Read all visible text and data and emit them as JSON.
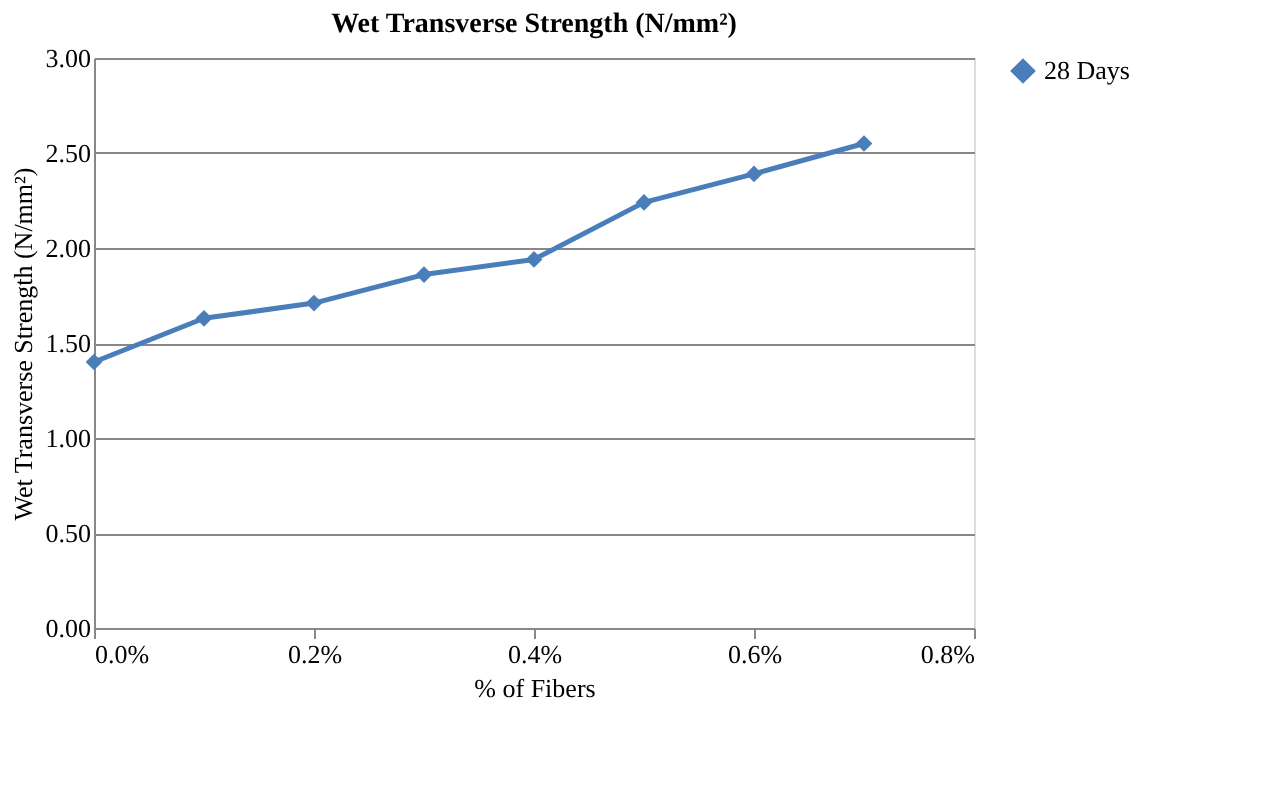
{
  "chart_data": {
    "type": "line",
    "title": "Wet Transverse Strength (N/mm²)",
    "xlabel": "% of Fibers",
    "ylabel": "Wet Transverse Strength (N/mm²)",
    "x": [
      0,
      0.1,
      0.2,
      0.3,
      0.4,
      0.5,
      0.6,
      0.7
    ],
    "series": [
      {
        "name": "28 Days",
        "color": "#4a7ebb",
        "values": [
          1.4,
          1.63,
          1.71,
          1.86,
          1.94,
          2.24,
          2.39,
          2.55
        ]
      }
    ],
    "xlim": [
      0,
      0.8
    ],
    "xticks": [
      {
        "value": 0,
        "label": "0.0%"
      },
      {
        "value": 0.2,
        "label": "0.2%"
      },
      {
        "value": 0.4,
        "label": "0.4%"
      },
      {
        "value": 0.6,
        "label": "0.6%"
      },
      {
        "value": 0.8,
        "label": "0.8%"
      }
    ],
    "ylim": [
      0,
      3
    ],
    "yticks": [
      {
        "value": 0,
        "label": "0.00"
      },
      {
        "value": 0.5,
        "label": "0.50"
      },
      {
        "value": 1,
        "label": "1.00"
      },
      {
        "value": 1.5,
        "label": "1.50"
      },
      {
        "value": 2,
        "label": "2.00"
      },
      {
        "value": 2.5,
        "label": "2.50"
      },
      {
        "value": 3,
        "label": "3.00"
      }
    ],
    "grid": "y",
    "legend": "right",
    "marker": "diamond",
    "line_style": "solid"
  }
}
